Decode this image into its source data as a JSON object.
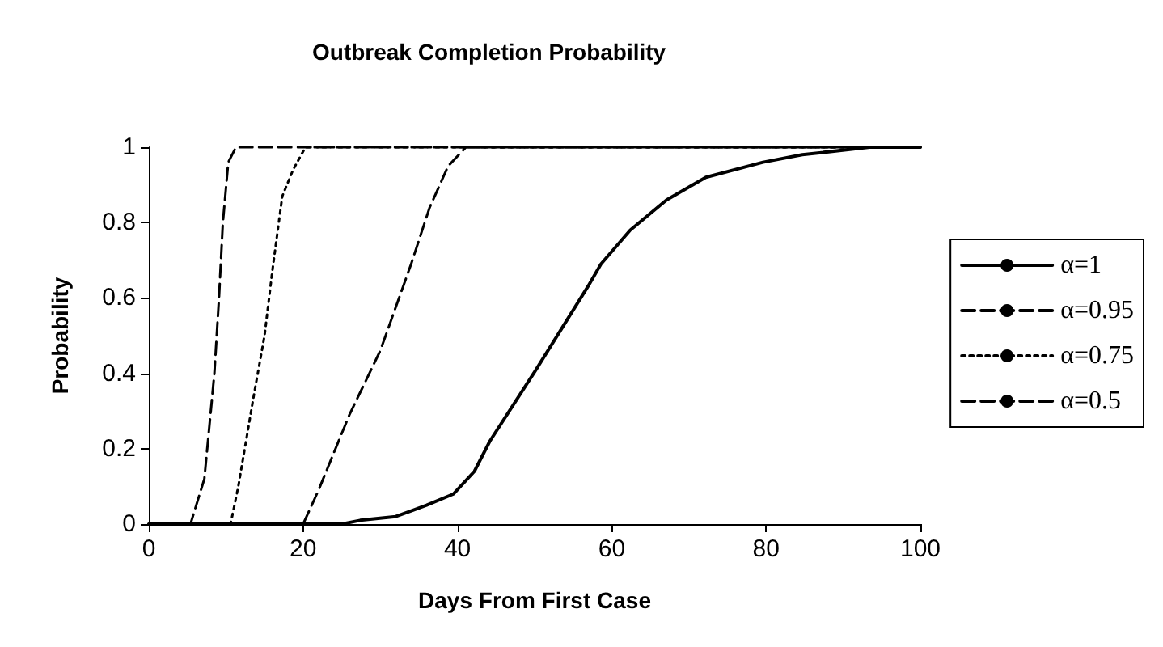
{
  "chart_data": {
    "type": "line",
    "title": "Outbreak Completion Probability",
    "xlabel": "Days From First Case",
    "ylabel": "Probability",
    "xlim": [
      0,
      100
    ],
    "xticks": [
      0,
      20,
      40,
      60,
      80,
      100
    ],
    "ylim": [
      0,
      1
    ],
    "yticks": [
      0,
      0.2,
      0.4,
      0.6,
      0.8,
      1
    ],
    "grid": false,
    "legend": "right",
    "marker": "none",
    "series": [
      {
        "name": "α=1",
        "color": "#000000",
        "line_style": "solid",
        "x": [
          0,
          25,
          27.4,
          32,
          36,
          39.5,
          42.2,
          44.2,
          50.2,
          56.9,
          58.6,
          62.4,
          67.1,
          72.2,
          79.6,
          84.7,
          93.4,
          100
        ],
        "values": [
          0,
          0,
          0.01,
          0.02,
          0.05,
          0.08,
          0.14,
          0.22,
          0.41,
          0.63,
          0.69,
          0.78,
          0.86,
          0.92,
          0.96,
          0.98,
          1,
          1
        ]
      },
      {
        "name": "α=0.95",
        "color": "#000000",
        "line_style": "dashed",
        "x": [
          0,
          20,
          22,
          26,
          30,
          34,
          36.4,
          38.8,
          41.1,
          100
        ],
        "values": [
          0,
          0,
          0.09,
          0.29,
          0.46,
          0.69,
          0.84,
          0.95,
          1,
          1
        ]
      },
      {
        "name": "α=0.75",
        "color": "#000000",
        "line_style": "dotted",
        "x": [
          0,
          10.6,
          11.6,
          13.6,
          15,
          16,
          17.3,
          18.7,
          20.3,
          100
        ],
        "values": [
          0,
          0,
          0.1,
          0.34,
          0.5,
          0.67,
          0.87,
          0.94,
          1,
          1
        ]
      },
      {
        "name": "α=0.5",
        "color": "#000000",
        "line_style": "dashed",
        "x": [
          0,
          5.4,
          7.2,
          8.5,
          9.1,
          9.6,
          10.3,
          11.3,
          100
        ],
        "values": [
          0,
          0,
          0.12,
          0.4,
          0.6,
          0.8,
          0.96,
          1,
          1
        ]
      }
    ]
  }
}
